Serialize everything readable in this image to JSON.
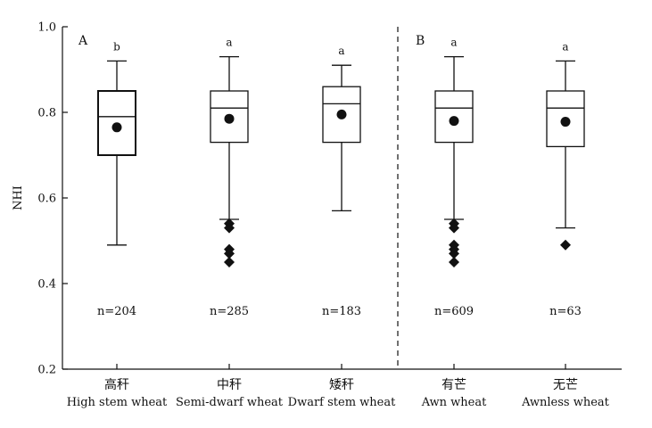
{
  "chart_data": {
    "type": "box",
    "ylabel": "NHI",
    "ylim": [
      0.2,
      1.0
    ],
    "yticks": [
      "0.2",
      "0.4",
      "0.6",
      "0.8",
      "1.0"
    ],
    "panels": [
      {
        "label": "A",
        "groups": [
          0,
          1,
          2
        ]
      },
      {
        "label": "B",
        "groups": [
          3,
          4
        ]
      }
    ],
    "groups": [
      {
        "cn": "高秆",
        "en": "High stem wheat",
        "n": "n=204",
        "letter": "b",
        "whisker_low": 0.49,
        "q1": 0.7,
        "median": 0.79,
        "q3": 0.85,
        "whisker_high": 0.92,
        "mean": 0.765,
        "outliers": []
      },
      {
        "cn": "中秆",
        "en": "Semi-dwarf wheat",
        "n": "n=285",
        "letter": "a",
        "whisker_low": 0.55,
        "q1": 0.73,
        "median": 0.81,
        "q3": 0.85,
        "whisker_high": 0.93,
        "mean": 0.785,
        "outliers": [
          0.54,
          0.53,
          0.48,
          0.47,
          0.45
        ]
      },
      {
        "cn": "矮秆",
        "en": "Dwarf stem wheat",
        "n": "n=183",
        "letter": "a",
        "whisker_low": 0.57,
        "q1": 0.73,
        "median": 0.82,
        "q3": 0.86,
        "whisker_high": 0.91,
        "mean": 0.795,
        "outliers": []
      },
      {
        "cn": "有芒",
        "en": "Awn wheat",
        "n": "n=609",
        "letter": "a",
        "whisker_low": 0.55,
        "q1": 0.73,
        "median": 0.81,
        "q3": 0.85,
        "whisker_high": 0.93,
        "mean": 0.78,
        "outliers": [
          0.54,
          0.53,
          0.49,
          0.48,
          0.47,
          0.45
        ]
      },
      {
        "cn": "无芒",
        "en": "Awnless wheat",
        "n": "n=63",
        "letter": "a",
        "whisker_low": 0.53,
        "q1": 0.72,
        "median": 0.81,
        "q3": 0.85,
        "whisker_high": 0.92,
        "mean": 0.778,
        "outliers": [
          0.49
        ]
      }
    ]
  }
}
